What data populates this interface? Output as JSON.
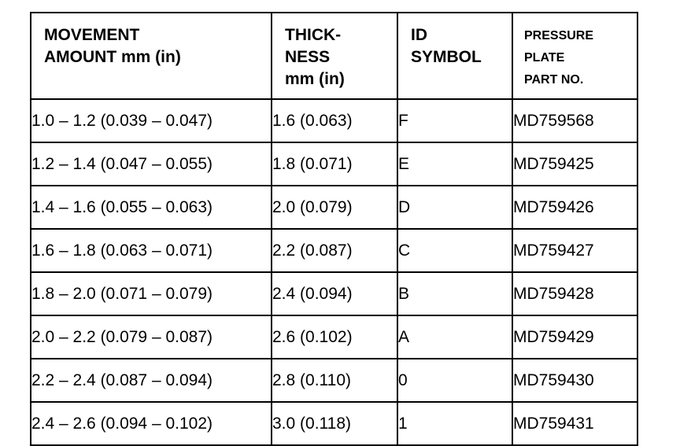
{
  "table": {
    "headers": [
      "MOVEMENT\nAMOUNT mm (in)",
      "THICK-\nNESS\nmm (in)",
      "ID\nSYMBOL",
      "PRESSURE\nPLATE\nPART NO."
    ],
    "rows": [
      [
        "1.0 – 1.2 (0.039 – 0.047)",
        "1.6 (0.063)",
        "F",
        "MD759568"
      ],
      [
        "1.2 – 1.4 (0.047 – 0.055)",
        "1.8 (0.071)",
        "E",
        "MD759425"
      ],
      [
        "1.4 – 1.6 (0.055 – 0.063)",
        "2.0 (0.079)",
        "D",
        "MD759426"
      ],
      [
        "1.6 – 1.8 (0.063 – 0.071)",
        "2.2 (0.087)",
        "C",
        "MD759427"
      ],
      [
        "1.8 – 2.0 (0.071 – 0.079)",
        "2.4 (0.094)",
        "B",
        "MD759428"
      ],
      [
        "2.0 – 2.2 (0.079 – 0.087)",
        "2.6 (0.102)",
        "A",
        "MD759429"
      ],
      [
        "2.2 – 2.4 (0.087 – 0.094)",
        "2.8 (0.110)",
        "0",
        "MD759430"
      ],
      [
        "2.4 – 2.6 (0.094 – 0.102)",
        "3.0 (0.118)",
        "1",
        "MD759431"
      ]
    ]
  }
}
